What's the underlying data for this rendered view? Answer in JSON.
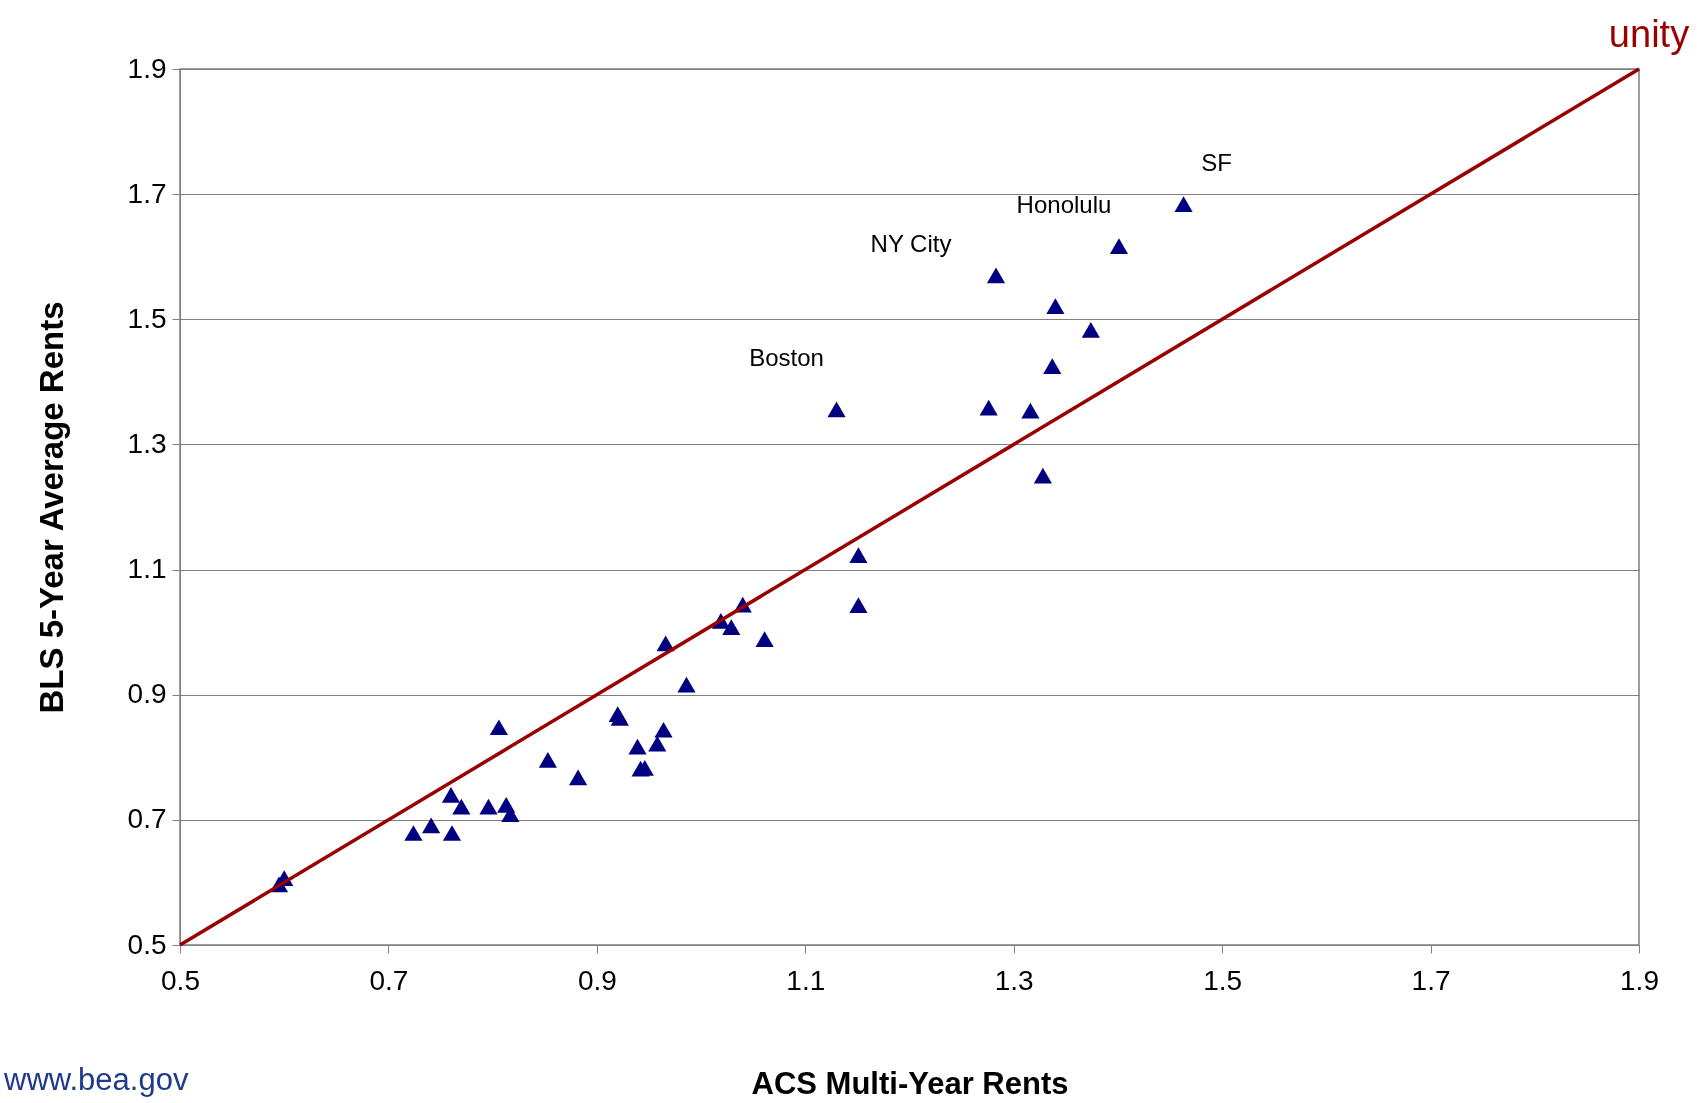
{
  "chart_data": {
    "type": "scatter",
    "xlabel": "ACS Multi-Year  Rents",
    "ylabel": "BLS 5-Year Average Rents",
    "xlim": [
      0.5,
      1.9
    ],
    "ylim": [
      0.5,
      1.9
    ],
    "xticks": [
      0.5,
      0.7,
      0.9,
      1.1,
      1.3,
      1.5,
      1.7,
      1.9
    ],
    "yticks": [
      0.5,
      0.7,
      0.9,
      1.1,
      1.3,
      1.5,
      1.7,
      1.9
    ],
    "grid": "y",
    "marker": "triangle",
    "series": [
      {
        "color": "#000080",
        "x": [
          0.595,
          0.6,
          0.724,
          0.741,
          0.761,
          0.76,
          0.77,
          0.796,
          0.813,
          0.817,
          0.806,
          0.853,
          0.882,
          0.92,
          0.922,
          0.939,
          0.942,
          0.946,
          0.958,
          0.964,
          0.966,
          0.986,
          1.019,
          1.029,
          1.04,
          1.061,
          1.13,
          1.151,
          1.151,
          1.276,
          1.283,
          1.316,
          1.328,
          1.337,
          1.34,
          1.374,
          1.401,
          1.463
        ],
        "values": [
          0.597,
          0.607,
          0.679,
          0.691,
          0.679,
          0.74,
          0.721,
          0.721,
          0.724,
          0.709,
          0.848,
          0.796,
          0.768,
          0.869,
          0.863,
          0.817,
          0.782,
          0.783,
          0.822,
          0.844,
          0.982,
          0.916,
          1.018,
          1.008,
          1.044,
          0.989,
          1.356,
          1.123,
          1.043,
          1.359,
          1.57,
          1.354,
          1.25,
          1.425,
          1.521,
          1.483,
          1.617,
          1.684
        ]
      },
      {
        "type": "line",
        "name": "unity",
        "color": "#990000",
        "x": [
          0.5,
          1.9
        ],
        "values": [
          0.5,
          1.9
        ],
        "line_style": "solid",
        "marker": "none"
      }
    ],
    "annotations": [
      {
        "text": "Boston",
        "x": 1.13,
        "y": 1.356
      },
      {
        "text": "NY City",
        "x": 1.283,
        "y": 1.57
      },
      {
        "text": "Honolulu",
        "x": 1.401,
        "y": 1.617
      },
      {
        "text": "SF",
        "x": 1.463,
        "y": 1.684
      },
      "www.bea.gov"
    ]
  }
}
